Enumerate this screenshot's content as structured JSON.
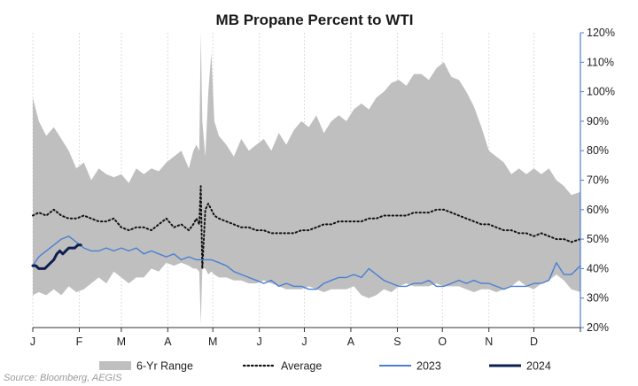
{
  "chart_data": {
    "type": "area",
    "title": "MB Propane Percent to WTI",
    "source": "Source: Bloomberg, AEGIS",
    "xlabel": "",
    "ylabel": "",
    "x_domain": [
      1,
      366
    ],
    "months": [
      {
        "label": "J",
        "day": 1
      },
      {
        "label": "F",
        "day": 32
      },
      {
        "label": "M",
        "day": 60
      },
      {
        "label": "A",
        "day": 91
      },
      {
        "label": "M",
        "day": 121
      },
      {
        "label": "J",
        "day": 152
      },
      {
        "label": "J",
        "day": 182
      },
      {
        "label": "A",
        "day": 213
      },
      {
        "label": "S",
        "day": 244
      },
      {
        "label": "O",
        "day": 274
      },
      {
        "label": "N",
        "day": 305
      },
      {
        "label": "D",
        "day": 335
      }
    ],
    "y_axis": {
      "side": "right",
      "min": 20,
      "max": 120,
      "step": 10,
      "tick_labels": [
        "20%",
        "30%",
        "40%",
        "50%",
        "60%",
        "70%",
        "80%",
        "90%",
        "100%",
        "110%",
        "120%"
      ]
    },
    "grid": {
      "vertical": true,
      "horizontal": false
    },
    "legend": {
      "position": "bottom",
      "entries": [
        {
          "label": "6-Yr Range",
          "style": "band",
          "color": "#bfbfbf"
        },
        {
          "label": "Average",
          "style": "dotted",
          "color": "#111111"
        },
        {
          "label": "2023",
          "style": "line",
          "color": "#4a7fd4"
        },
        {
          "label": "2024",
          "style": "line",
          "color": "#0d1f4f"
        }
      ]
    },
    "series": [
      {
        "name": "6-Yr Range",
        "type": "band",
        "color": "#bfbfbf",
        "x": [
          1,
          5,
          10,
          15,
          20,
          25,
          30,
          35,
          40,
          45,
          50,
          55,
          60,
          65,
          70,
          75,
          80,
          85,
          90,
          95,
          100,
          105,
          108,
          110,
          112,
          113,
          114,
          116,
          118,
          120,
          122,
          125,
          130,
          135,
          140,
          145,
          150,
          155,
          160,
          165,
          170,
          175,
          180,
          185,
          190,
          195,
          200,
          205,
          210,
          215,
          220,
          225,
          230,
          235,
          240,
          245,
          250,
          255,
          260,
          265,
          270,
          275,
          280,
          285,
          290,
          295,
          300,
          305,
          310,
          315,
          320,
          325,
          330,
          335,
          340,
          345,
          350,
          355,
          360,
          366
        ],
        "upper": [
          98,
          90,
          85,
          88,
          84,
          80,
          74,
          76,
          70,
          74,
          72,
          71,
          72,
          69,
          74,
          72,
          74,
          73,
          76,
          78,
          80,
          74,
          80,
          82,
          80,
          120,
          90,
          78,
          100,
          113,
          90,
          85,
          82,
          78,
          84,
          80,
          82,
          84,
          80,
          86,
          82,
          87,
          90,
          88,
          92,
          86,
          90,
          92,
          90,
          94,
          96,
          94,
          98,
          100,
          103,
          104,
          102,
          106,
          106,
          104,
          108,
          110,
          105,
          104,
          100,
          95,
          88,
          80,
          78,
          76,
          72,
          74,
          72,
          74,
          72,
          74,
          70,
          68,
          65,
          66
        ],
        "lower": [
          31,
          32,
          31,
          33,
          31,
          34,
          32,
          33,
          35,
          37,
          35,
          39,
          37,
          35,
          37,
          37,
          40,
          39,
          42,
          41,
          42,
          41,
          40,
          40,
          39,
          21,
          40,
          40,
          38,
          39,
          38,
          37,
          37,
          36,
          36,
          35,
          35,
          36,
          35,
          34,
          33,
          33,
          33,
          34,
          33,
          32,
          33,
          33,
          33,
          34,
          31,
          30,
          31,
          33,
          32,
          34,
          35,
          34,
          34,
          34,
          35,
          34,
          34,
          34,
          33,
          32,
          33,
          33,
          32,
          33,
          34,
          36,
          34,
          33,
          35,
          36,
          38,
          36,
          33,
          32
        ]
      },
      {
        "name": "Average",
        "type": "dotted",
        "color": "#111111",
        "x": [
          1,
          5,
          10,
          15,
          20,
          25,
          30,
          35,
          40,
          45,
          50,
          55,
          60,
          65,
          70,
          75,
          80,
          85,
          90,
          95,
          100,
          105,
          108,
          110,
          112,
          113,
          114,
          116,
          118,
          120,
          122,
          125,
          130,
          135,
          140,
          145,
          150,
          155,
          160,
          165,
          170,
          175,
          180,
          185,
          190,
          195,
          200,
          205,
          210,
          215,
          220,
          225,
          230,
          235,
          240,
          245,
          250,
          255,
          260,
          265,
          270,
          275,
          280,
          285,
          290,
          295,
          300,
          305,
          310,
          315,
          320,
          325,
          330,
          335,
          340,
          345,
          350,
          355,
          360,
          366
        ],
        "values": [
          58,
          59,
          58,
          60,
          58,
          57,
          57,
          58,
          57,
          56,
          56,
          57,
          54,
          53,
          54,
          54,
          53,
          55,
          57,
          54,
          55,
          53,
          55,
          57,
          55,
          68,
          40,
          60,
          62,
          60,
          58,
          57,
          56,
          55,
          54,
          54,
          53,
          53,
          52,
          52,
          52,
          52,
          53,
          53,
          54,
          55,
          55,
          56,
          56,
          56,
          56,
          57,
          57,
          58,
          58,
          58,
          58,
          59,
          59,
          59,
          60,
          60,
          59,
          58,
          57,
          56,
          55,
          55,
          54,
          53,
          53,
          52,
          52,
          51,
          52,
          51,
          50,
          50,
          49,
          50
        ]
      },
      {
        "name": "2023",
        "type": "line",
        "color": "#4a7fd4",
        "x": [
          1,
          5,
          10,
          15,
          20,
          25,
          30,
          35,
          40,
          45,
          50,
          55,
          60,
          65,
          70,
          75,
          80,
          85,
          90,
          95,
          100,
          105,
          110,
          115,
          120,
          125,
          130,
          135,
          140,
          145,
          150,
          155,
          160,
          165,
          170,
          175,
          180,
          185,
          190,
          195,
          200,
          205,
          210,
          215,
          220,
          225,
          230,
          235,
          240,
          245,
          250,
          255,
          260,
          265,
          270,
          275,
          280,
          285,
          290,
          295,
          300,
          305,
          310,
          315,
          320,
          325,
          330,
          335,
          340,
          345,
          350,
          355,
          360,
          366
        ],
        "values": [
          41,
          44,
          46,
          48,
          50,
          51,
          49,
          47,
          46,
          46,
          47,
          46,
          47,
          46,
          47,
          45,
          46,
          45,
          44,
          45,
          43,
          44,
          43,
          43,
          43,
          42,
          41,
          39,
          38,
          37,
          36,
          35,
          36,
          34,
          35,
          34,
          34,
          33,
          33,
          35,
          36,
          37,
          37,
          38,
          37,
          40,
          38,
          36,
          35,
          34,
          34,
          35,
          35,
          36,
          34,
          34,
          35,
          36,
          35,
          36,
          35,
          35,
          34,
          33,
          34,
          34,
          34,
          35,
          35,
          36,
          42,
          38,
          38,
          41
        ]
      },
      {
        "name": "2024",
        "type": "line",
        "color": "#0d1f4f",
        "x": [
          1,
          3,
          5,
          7,
          9,
          11,
          13,
          15,
          17,
          19,
          21,
          23,
          25,
          27,
          29,
          31,
          33
        ],
        "values": [
          41,
          41,
          40,
          40,
          40,
          41,
          42,
          43,
          45,
          46,
          45,
          46,
          47,
          47,
          47,
          48,
          48
        ]
      }
    ]
  }
}
